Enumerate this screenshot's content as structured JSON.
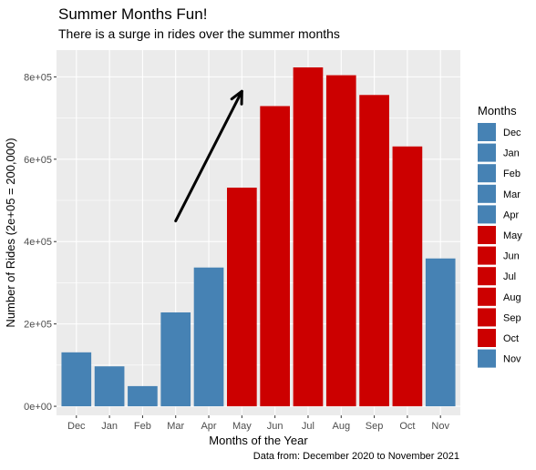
{
  "chart_data": {
    "type": "bar",
    "title": "Summer Months Fun!",
    "subtitle": "There is a surge in rides over the summer months",
    "caption": "Data from: December 2020 to November 2021",
    "xlabel": "Months of the Year",
    "ylabel": "Number of Rides (2e+05 = 200,000)",
    "categories": [
      "Dec",
      "Jan",
      "Feb",
      "Mar",
      "Apr",
      "May",
      "Jun",
      "Jul",
      "Aug",
      "Sep",
      "Oct",
      "Nov"
    ],
    "values": [
      131000,
      97000,
      49000,
      228000,
      337000,
      531000,
      729000,
      823000,
      804000,
      756000,
      631000,
      359000
    ],
    "ylim": [
      -22000,
      865000
    ],
    "yticks": [
      0,
      200000,
      400000,
      600000,
      800000
    ],
    "ytick_labels": [
      "0e+00",
      "2e+05",
      "4e+05",
      "6e+05",
      "8e+05"
    ],
    "grid": true,
    "legend": {
      "title": "Months",
      "position": "right"
    },
    "colors": {
      "Dec": "#4682B4",
      "Jan": "#4682B4",
      "Feb": "#4682B4",
      "Mar": "#4682B4",
      "Apr": "#4682B4",
      "May": "#CC0000",
      "Jun": "#CC0000",
      "Jul": "#CC0000",
      "Aug": "#CC0000",
      "Sep": "#CC0000",
      "Oct": "#CC0000",
      "Nov": "#4682B4"
    },
    "panel_background": "#EBEBEB",
    "annotation": {
      "type": "arrow",
      "from": {
        "x": "Mar",
        "y": 450000
      },
      "to": {
        "x": "May",
        "y": 765000
      }
    }
  }
}
